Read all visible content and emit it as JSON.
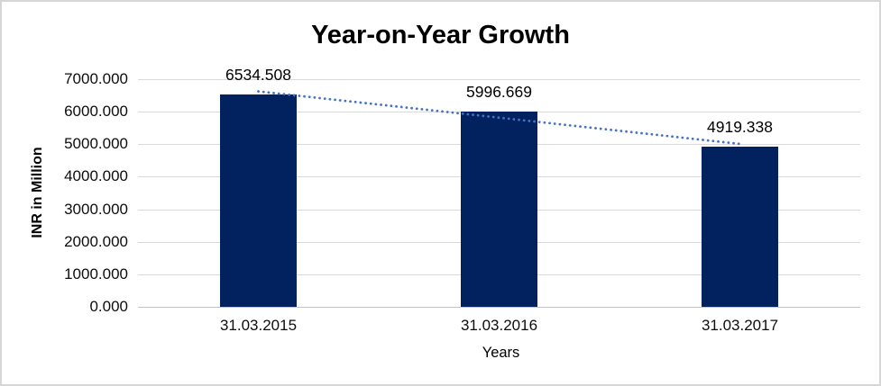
{
  "chart_data": {
    "type": "bar",
    "title": "Year-on-Year Growth",
    "categories": [
      "31.03.2015",
      "31.03.2016",
      "31.03.2017"
    ],
    "values": [
      6534.508,
      5996.669,
      4919.338
    ],
    "data_labels": [
      "6534.508",
      "5996.669",
      "4919.338"
    ],
    "xlabel": "Years",
    "ylabel": "INR in Million",
    "ylim": [
      0,
      7000
    ],
    "ytick_interval": 1000,
    "ytick_labels": [
      "0.000",
      "1000.000",
      "2000.000",
      "3000.000",
      "4000.000",
      "5000.000",
      "6000.000",
      "7000.000"
    ],
    "grid": true,
    "legend": "none",
    "bar_color": "#02215F",
    "gridline_color": "#d9d9d9",
    "trendline": {
      "type": "linear",
      "style": "dotted",
      "color": "#4472C4",
      "start_value": 6624.4,
      "end_value": 5009.3
    }
  }
}
